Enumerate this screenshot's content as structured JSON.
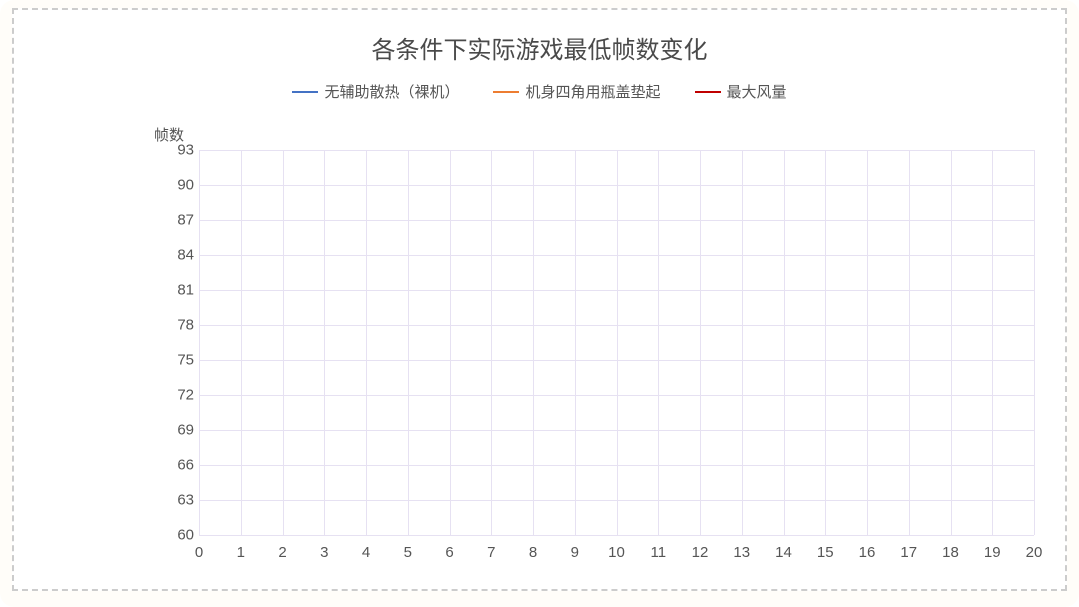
{
  "chart": {
    "type": "line",
    "title": "各条件下实际游戏最低帧数变化",
    "title_fontsize": 24,
    "title_color": "#4a4a4a",
    "background_color": "#ffffff",
    "outer_background_color": "#fffdf9",
    "border_style": "dashed",
    "border_color": "#cccccc",
    "border_width": 2,
    "y_axis": {
      "title": "帧数",
      "min": 60,
      "max": 93,
      "ticks": [
        60,
        63,
        66,
        69,
        72,
        75,
        78,
        81,
        84,
        87,
        90,
        93
      ],
      "step": 3,
      "label_fontsize": 15,
      "label_color": "#555555"
    },
    "x_axis": {
      "min": 0,
      "max": 20,
      "ticks": [
        0,
        1,
        2,
        3,
        4,
        5,
        6,
        7,
        8,
        9,
        10,
        11,
        12,
        13,
        14,
        15,
        16,
        17,
        18,
        19,
        20
      ],
      "step": 1,
      "label_fontsize": 15,
      "label_color": "#555555"
    },
    "grid": {
      "enabled": true,
      "color": "#e6e1f2",
      "line_width": 1
    },
    "legend": {
      "position": "top-center",
      "fontsize": 15,
      "text_color": "#555555",
      "swatch_width": 26,
      "swatch_line_width": 2
    },
    "series": [
      {
        "name": "无辅助散热（裸机）",
        "color": "#4472c4",
        "values": []
      },
      {
        "name": "机身四角用瓶盖垫起",
        "color": "#ed7d31",
        "values": []
      },
      {
        "name": "最大风量",
        "color": "#c00000",
        "values": []
      }
    ]
  }
}
